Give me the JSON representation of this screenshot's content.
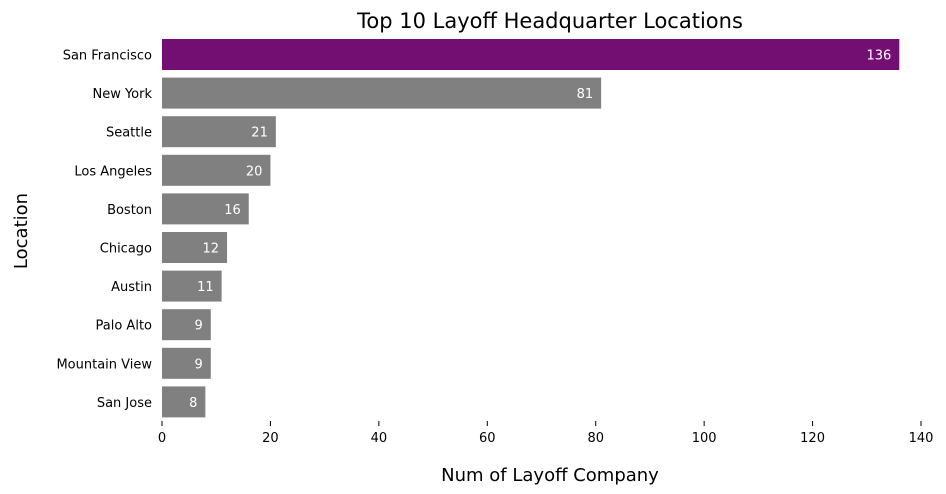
{
  "chart_data": {
    "type": "bar",
    "orientation": "horizontal",
    "title": "Top 10 Layoff Headquarter Locations",
    "xlabel": "Num of Layoff Company",
    "ylabel": "Location",
    "categories": [
      "San Francisco",
      "New York",
      "Seattle",
      "Los Angeles",
      "Boston",
      "Chicago",
      "Austin",
      "Palo Alto",
      "Mountain View",
      "San Jose"
    ],
    "values": [
      136,
      81,
      21,
      20,
      16,
      12,
      11,
      9,
      9,
      8
    ],
    "xlim": [
      0,
      140
    ],
    "xticks": [
      0,
      20,
      40,
      60,
      80,
      100,
      120,
      140
    ],
    "grid": false,
    "highlight_color": "#730f72",
    "bar_color": "#808080",
    "value_label_color": "#ffffff"
  }
}
